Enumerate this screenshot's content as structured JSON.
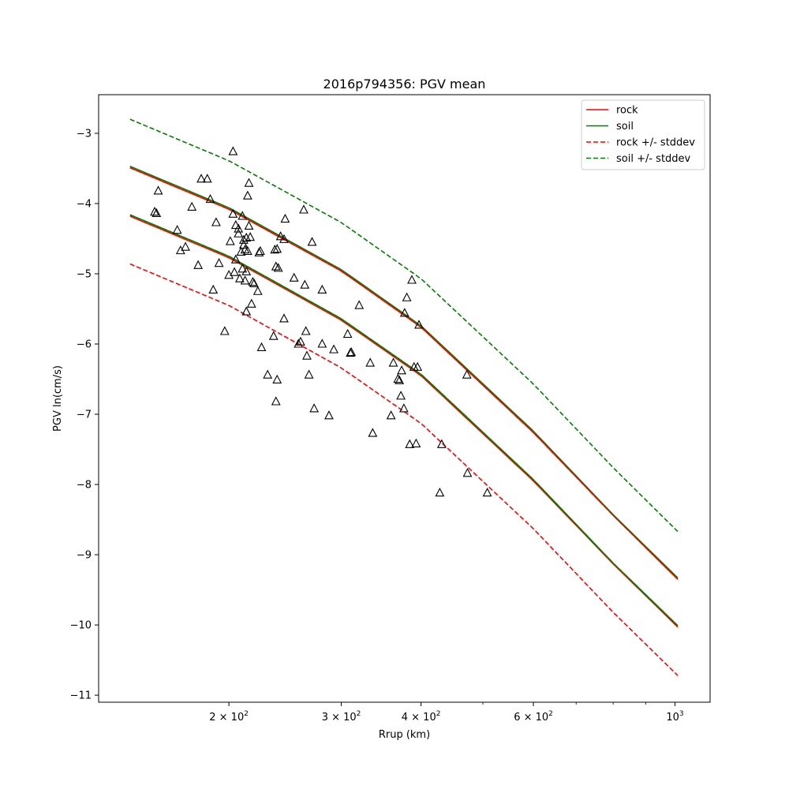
{
  "chart_data": {
    "type": "scatter",
    "title": "2016p794356: PGV mean",
    "xlabel": "Rrup (km)",
    "ylabel": "PGV ln(cm/s)",
    "xscale": "log",
    "xlim": [
      125,
      1135
    ],
    "ylim": [
      -11.1,
      -2.45
    ],
    "x_ticks": [
      {
        "value": 200,
        "base": "2",
        "exp": "2"
      },
      {
        "value": 300,
        "base": "3",
        "exp": "2"
      },
      {
        "value": 400,
        "base": "4",
        "exp": "2"
      },
      {
        "value": 600,
        "base": "6",
        "exp": "2"
      },
      {
        "value": 1000,
        "base": "10",
        "exp": "3"
      }
    ],
    "x_minor_ticks": [
      500,
      700,
      800,
      900
    ],
    "y_ticks": [
      {
        "value": -3,
        "label": "−3"
      },
      {
        "value": -4,
        "label": "−4"
      },
      {
        "value": -5,
        "label": "−5"
      },
      {
        "value": -6,
        "label": "−6"
      },
      {
        "value": -7,
        "label": "−7"
      },
      {
        "value": -8,
        "label": "−8"
      },
      {
        "value": -9,
        "label": "−9"
      },
      {
        "value": -10,
        "label": "−10"
      },
      {
        "value": -11,
        "label": "−11"
      }
    ],
    "grid": false,
    "legend_position": "top-right",
    "legend": [
      {
        "label": "rock",
        "color": "#ff0000",
        "style": "solid"
      },
      {
        "label": "soil",
        "color": "#008000",
        "style": "solid"
      },
      {
        "label": "rock +/- stddev",
        "color": "#ff0000",
        "style": "dashed"
      },
      {
        "label": "soil +/- stddev",
        "color": "#008000",
        "style": "dashed"
      }
    ],
    "curve_x": [
      140,
      200,
      300,
      400,
      600,
      800,
      1010
    ],
    "lines": [
      {
        "group": "rock",
        "style": "solid",
        "color": "#ff0000",
        "y": [
          -4.18,
          -4.77,
          -5.66,
          -6.45,
          -7.95,
          -9.13,
          -10.03
        ]
      },
      {
        "group": "soil",
        "style": "solid",
        "color": "#008000",
        "y": [
          -4.16,
          -4.75,
          -5.64,
          -6.43,
          -7.93,
          -9.12,
          -10.01
        ]
      },
      {
        "group": "rock",
        "style": "solid",
        "color": "#ff0000",
        "y": [
          -3.49,
          -4.08,
          -4.96,
          -5.76,
          -7.26,
          -8.44,
          -9.35
        ]
      },
      {
        "group": "soil",
        "style": "solid",
        "color": "#008000",
        "y": [
          -3.47,
          -4.06,
          -4.94,
          -5.74,
          -7.24,
          -8.43,
          -9.33
        ]
      },
      {
        "group": "rock +/- stddev",
        "style": "dashed",
        "color": "#ff0000",
        "y": [
          -4.86,
          -5.45,
          -6.34,
          -7.13,
          -8.63,
          -9.82,
          -10.72
        ]
      },
      {
        "group": "soil +/- stddev",
        "style": "dashed",
        "color": "#008000",
        "y": [
          -4.16,
          -4.75,
          -5.64,
          -6.43,
          -7.93,
          -9.12,
          -10.01
        ]
      },
      {
        "group": "rock +/- stddev",
        "style": "dashed",
        "color": "#ff0000",
        "y": [
          -3.49,
          -4.08,
          -4.96,
          -5.76,
          -7.26,
          -8.44,
          -9.35
        ]
      },
      {
        "group": "soil +/- stddev",
        "style": "dashed",
        "color": "#008000",
        "y": [
          -2.8,
          -3.39,
          -4.27,
          -5.07,
          -6.57,
          -7.76,
          -8.67
        ]
      }
    ],
    "points": [
      {
        "x": 153,
        "y": -4.12
      },
      {
        "x": 154,
        "y": -4.14
      },
      {
        "x": 155,
        "y": -3.82
      },
      {
        "x": 166,
        "y": -4.38
      },
      {
        "x": 168,
        "y": -4.67
      },
      {
        "x": 171,
        "y": -4.62
      },
      {
        "x": 175,
        "y": -4.05
      },
      {
        "x": 179,
        "y": -4.88
      },
      {
        "x": 181,
        "y": -3.65
      },
      {
        "x": 185,
        "y": -3.65
      },
      {
        "x": 187,
        "y": -3.94
      },
      {
        "x": 189,
        "y": -5.23
      },
      {
        "x": 191,
        "y": -4.27
      },
      {
        "x": 193,
        "y": -4.85
      },
      {
        "x": 197,
        "y": -5.82
      },
      {
        "x": 200,
        "y": -5.02
      },
      {
        "x": 201,
        "y": -4.54
      },
      {
        "x": 203,
        "y": -3.26
      },
      {
        "x": 203,
        "y": -4.15
      },
      {
        "x": 204,
        "y": -4.98
      },
      {
        "x": 205,
        "y": -4.8
      },
      {
        "x": 205,
        "y": -4.31
      },
      {
        "x": 207,
        "y": -4.43
      },
      {
        "x": 207,
        "y": -4.36
      },
      {
        "x": 208,
        "y": -5.07
      },
      {
        "x": 209,
        "y": -4.69
      },
      {
        "x": 210,
        "y": -4.18
      },
      {
        "x": 210,
        "y": -4.93
      },
      {
        "x": 211,
        "y": -4.59
      },
      {
        "x": 211,
        "y": -4.52
      },
      {
        "x": 212,
        "y": -4.66
      },
      {
        "x": 212,
        "y": -5.1
      },
      {
        "x": 213,
        "y": -4.97
      },
      {
        "x": 213,
        "y": -4.49
      },
      {
        "x": 213,
        "y": -5.54
      },
      {
        "x": 214,
        "y": -3.89
      },
      {
        "x": 214,
        "y": -4.68
      },
      {
        "x": 215,
        "y": -3.71
      },
      {
        "x": 215,
        "y": -4.32
      },
      {
        "x": 216,
        "y": -4.48
      },
      {
        "x": 217,
        "y": -5.43
      },
      {
        "x": 218,
        "y": -5.12
      },
      {
        "x": 219,
        "y": -5.14
      },
      {
        "x": 222,
        "y": -5.25
      },
      {
        "x": 223,
        "y": -4.7
      },
      {
        "x": 224,
        "y": -4.68
      },
      {
        "x": 225,
        "y": -6.05
      },
      {
        "x": 230,
        "y": -6.44
      },
      {
        "x": 235,
        "y": -5.89
      },
      {
        "x": 236,
        "y": -4.66
      },
      {
        "x": 237,
        "y": -4.9
      },
      {
        "x": 237,
        "y": -6.82
      },
      {
        "x": 238,
        "y": -4.65
      },
      {
        "x": 238,
        "y": -6.51
      },
      {
        "x": 239,
        "y": -4.92
      },
      {
        "x": 241,
        "y": -4.47
      },
      {
        "x": 244,
        "y": -4.51
      },
      {
        "x": 244,
        "y": -5.64
      },
      {
        "x": 245,
        "y": -4.22
      },
      {
        "x": 253,
        "y": -5.06
      },
      {
        "x": 257,
        "y": -6.0
      },
      {
        "x": 259,
        "y": -5.97
      },
      {
        "x": 262,
        "y": -4.09
      },
      {
        "x": 263,
        "y": -5.16
      },
      {
        "x": 264,
        "y": -5.82
      },
      {
        "x": 265,
        "y": -6.17
      },
      {
        "x": 267,
        "y": -6.44
      },
      {
        "x": 270,
        "y": -4.55
      },
      {
        "x": 272,
        "y": -6.92
      },
      {
        "x": 280,
        "y": -5.23
      },
      {
        "x": 280,
        "y": -6.0
      },
      {
        "x": 287,
        "y": -7.02
      },
      {
        "x": 292,
        "y": -6.08
      },
      {
        "x": 307,
        "y": -5.86
      },
      {
        "x": 310,
        "y": -6.13
      },
      {
        "x": 311,
        "y": -6.12
      },
      {
        "x": 320,
        "y": -5.45
      },
      {
        "x": 333,
        "y": -6.27
      },
      {
        "x": 336,
        "y": -7.27
      },
      {
        "x": 359,
        "y": -7.02
      },
      {
        "x": 362,
        "y": -6.27
      },
      {
        "x": 368,
        "y": -6.5
      },
      {
        "x": 370,
        "y": -6.52
      },
      {
        "x": 372,
        "y": -6.74
      },
      {
        "x": 373,
        "y": -6.38
      },
      {
        "x": 376,
        "y": -6.92
      },
      {
        "x": 377,
        "y": -5.56
      },
      {
        "x": 380,
        "y": -5.34
      },
      {
        "x": 384,
        "y": -7.43
      },
      {
        "x": 387,
        "y": -5.09
      },
      {
        "x": 390,
        "y": -6.33
      },
      {
        "x": 393,
        "y": -7.42
      },
      {
        "x": 395,
        "y": -6.33
      },
      {
        "x": 397,
        "y": -5.73
      },
      {
        "x": 428,
        "y": -8.12
      },
      {
        "x": 431,
        "y": -7.43
      },
      {
        "x": 472,
        "y": -6.44
      },
      {
        "x": 473,
        "y": -7.84
      },
      {
        "x": 508,
        "y": -8.12
      }
    ]
  }
}
